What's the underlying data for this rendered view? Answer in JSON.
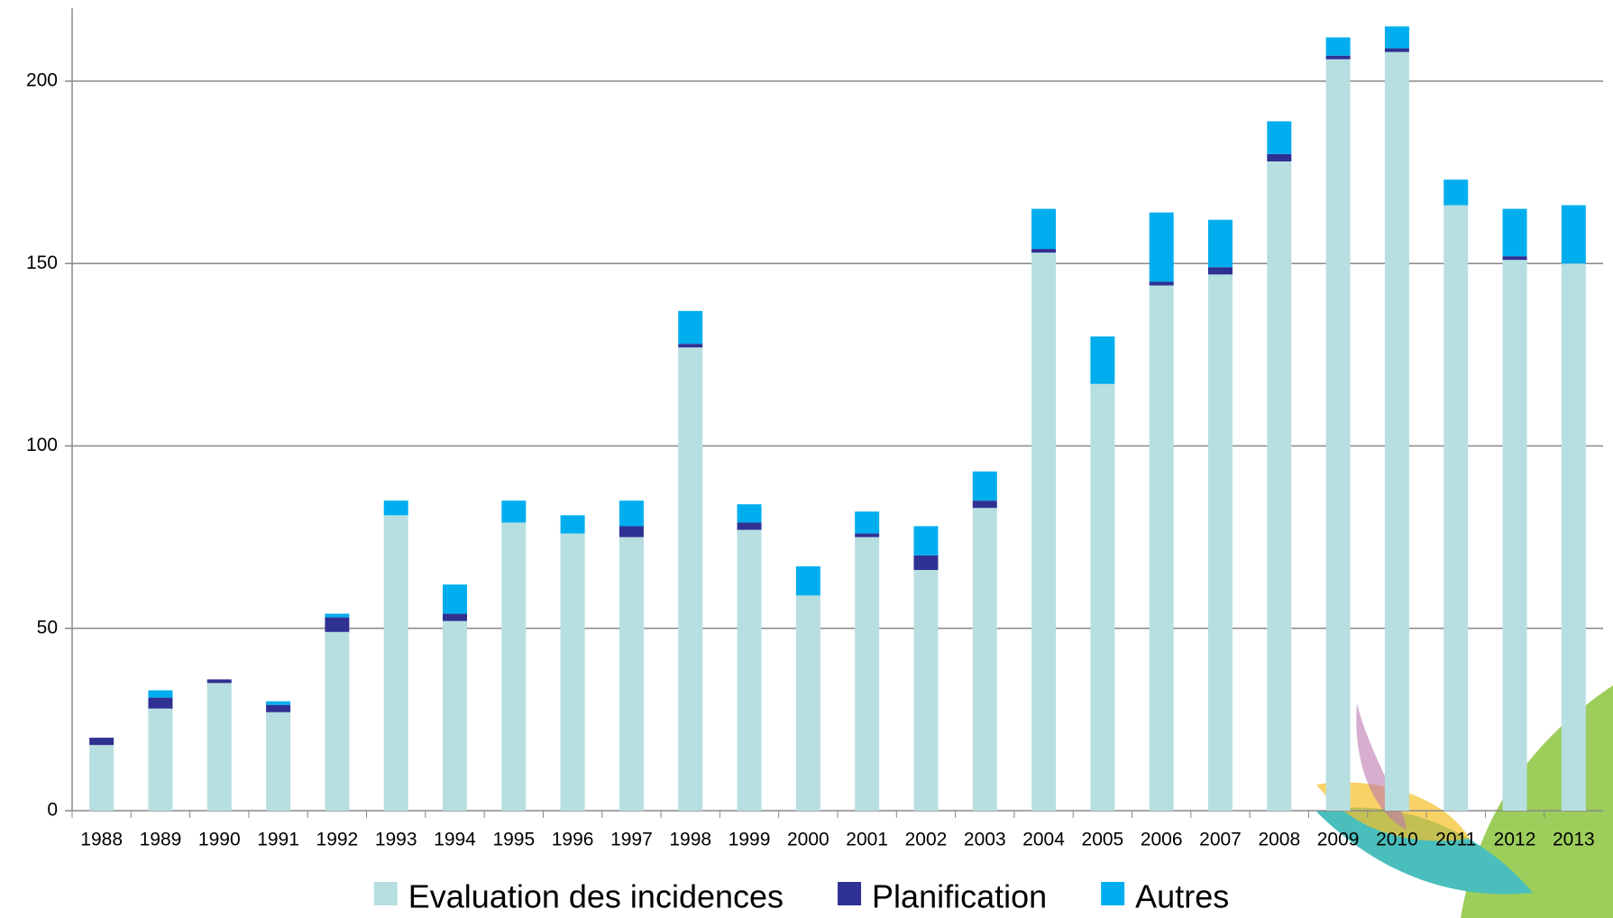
{
  "chart_data": {
    "type": "stacked-bar",
    "categories": [
      "1988",
      "1989",
      "1990",
      "1991",
      "1992",
      "1993",
      "1994",
      "1995",
      "1996",
      "1997",
      "1998",
      "1999",
      "2000",
      "2001",
      "2002",
      "2003",
      "2004",
      "2005",
      "2006",
      "2007",
      "2008",
      "2009",
      "2010",
      "2011",
      "2012",
      "2013"
    ],
    "series": [
      {
        "name": "Evaluation des incidences",
        "color": "#b7dfe1",
        "values": [
          18,
          28,
          35,
          27,
          49,
          81,
          52,
          79,
          76,
          75,
          127,
          77,
          59,
          75,
          66,
          83,
          153,
          117,
          144,
          147,
          178,
          206,
          208,
          166,
          151,
          150
        ]
      },
      {
        "name": "Planification",
        "color": "#2e3192",
        "values": [
          2,
          3,
          1,
          2,
          4,
          0,
          2,
          0,
          0,
          3,
          1,
          2,
          0,
          1,
          4,
          2,
          1,
          0,
          1,
          2,
          2,
          1,
          1,
          0,
          1,
          0
        ]
      },
      {
        "name": "Autres",
        "color": "#00aeef",
        "values": [
          0,
          2,
          0,
          1,
          1,
          4,
          8,
          6,
          5,
          7,
          9,
          5,
          8,
          6,
          8,
          8,
          11,
          13,
          19,
          13,
          9,
          5,
          6,
          7,
          13,
          16
        ]
      }
    ],
    "ylim": [
      0,
      220
    ],
    "yticks": [
      0,
      50,
      100,
      150,
      200
    ],
    "grid": true,
    "legend": "bottom"
  }
}
